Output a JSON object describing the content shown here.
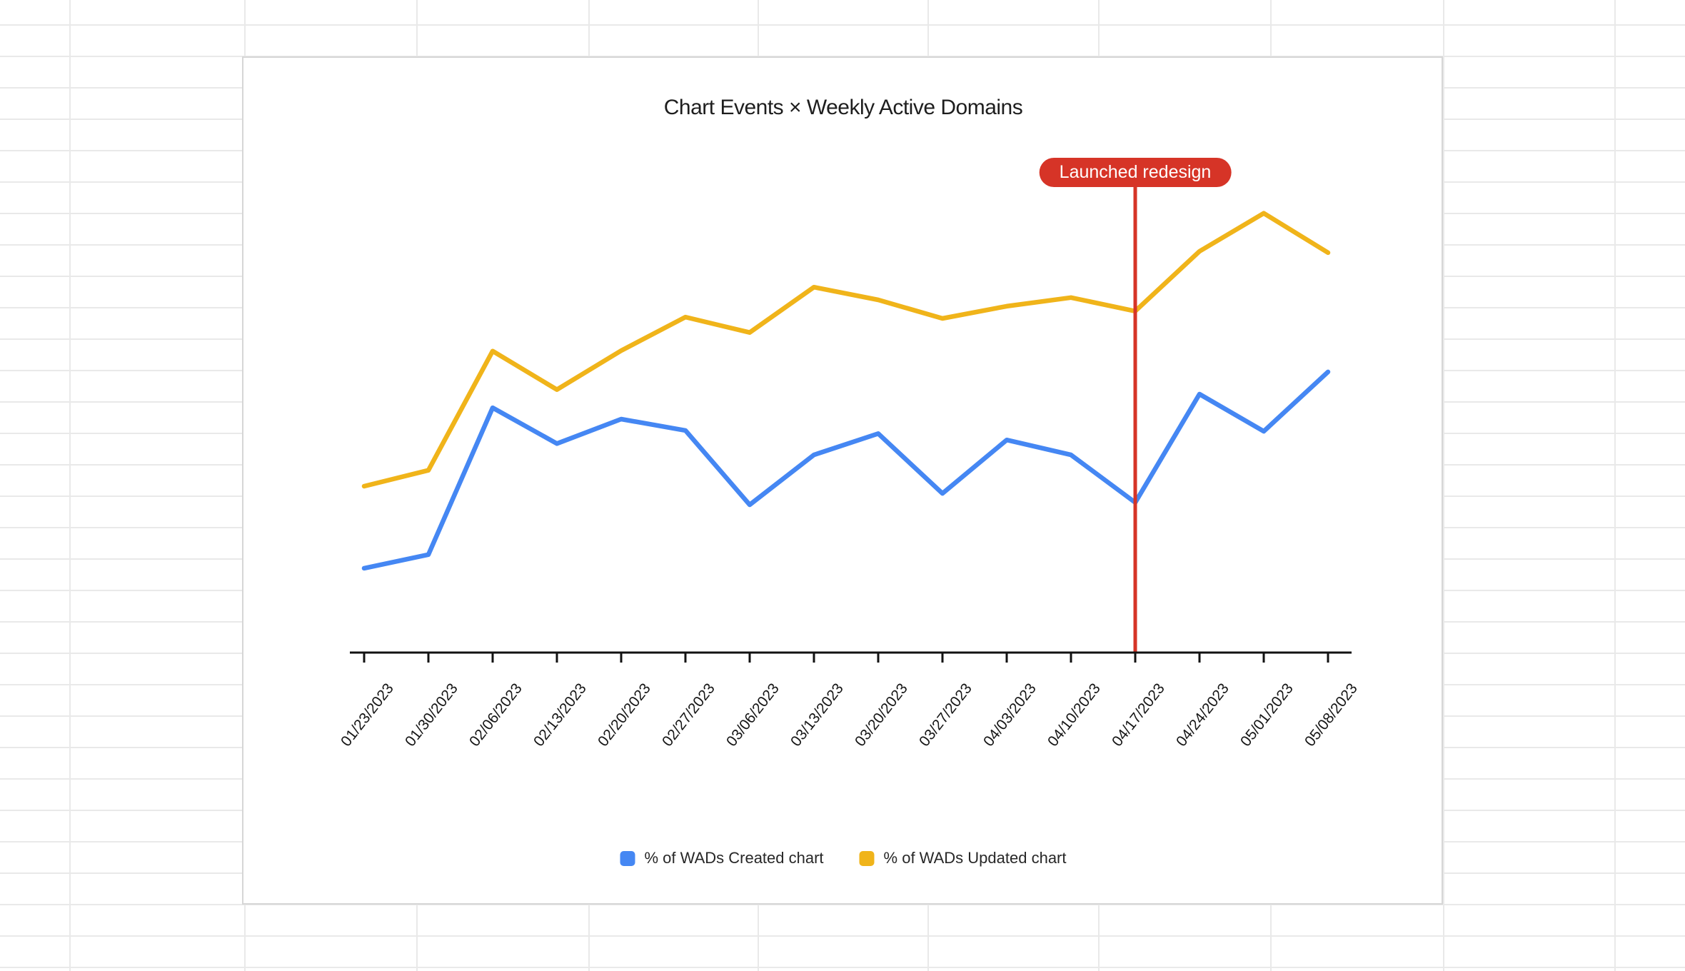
{
  "chart_data": {
    "type": "line",
    "title": "Chart Events × Weekly Active Domains",
    "categories": [
      "01/23/2023",
      "01/30/2023",
      "02/06/2023",
      "02/13/2023",
      "02/20/2023",
      "02/27/2023",
      "03/06/2023",
      "03/13/2023",
      "03/20/2023",
      "03/27/2023",
      "04/03/2023",
      "04/10/2023",
      "04/17/2023",
      "04/24/2023",
      "05/01/2023",
      "05/08/2023"
    ],
    "series": [
      {
        "name": "% of WADs Created chart",
        "color": "#4587F3",
        "values": [
          18.6,
          21.6,
          54.0,
          46.1,
          51.5,
          49.0,
          32.6,
          43.6,
          48.3,
          35.1,
          46.9,
          43.6,
          33.1,
          57.0,
          48.8,
          61.9
        ]
      },
      {
        "name": "% of WADs Updated chart",
        "color": "#F0B41A",
        "values": [
          36.7,
          40.2,
          66.5,
          58.0,
          66.6,
          74.0,
          70.6,
          80.6,
          77.8,
          73.7,
          76.4,
          78.3,
          75.3,
          88.5,
          96.9,
          88.2
        ]
      }
    ],
    "annotation": {
      "label": "Launched redesign",
      "category": "04/17/2023",
      "color": "#D63427"
    },
    "xlabel": "",
    "ylabel": "",
    "ylim": [
      0,
      100
    ],
    "y_axis_visible": false,
    "grid": false,
    "legend_position": "bottom"
  },
  "colors": {
    "axis": "#121212",
    "tick_label": "#161616",
    "title_text": "#1e1e1e",
    "legend_text": "#272727",
    "badge_text": "#ffffff",
    "card_border": "#d6d6d6",
    "sheet_gridline": "#e9e9e9",
    "background": "#ffffff"
  }
}
